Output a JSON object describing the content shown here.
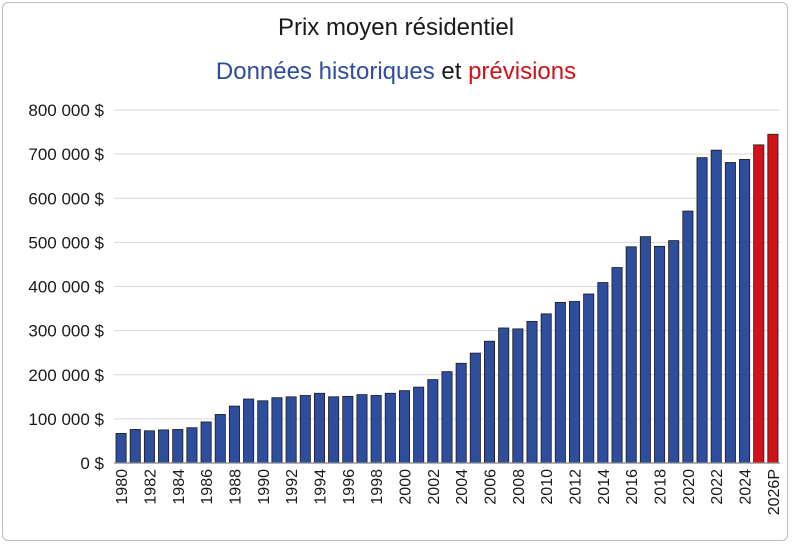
{
  "chart_data": {
    "type": "bar",
    "title": "Prix moyen résidentiel",
    "subtitle": {
      "part1": "Données historiques",
      "part2": "et",
      "part3": "prévisions"
    },
    "xlabel": "",
    "ylabel": "",
    "ylim": [
      0,
      800000
    ],
    "y_ticks": [
      "0 $",
      "100 000 $",
      "200 000 $",
      "300 000 $",
      "400 000 $",
      "500 000 $",
      "600 000 $",
      "700 000 $",
      "800 000 $"
    ],
    "grid": true,
    "colors": {
      "historical": "#2e4d9c",
      "forecast": "#d0121b",
      "grid": "#d9d9d9",
      "axis": "#888888"
    },
    "categories": [
      "1980",
      "1981",
      "1982",
      "1983",
      "1984",
      "1985",
      "1986",
      "1987",
      "1988",
      "1989",
      "1990",
      "1991",
      "1992",
      "1993",
      "1994",
      "1995",
      "1996",
      "1997",
      "1998",
      "1999",
      "2000",
      "2001",
      "2002",
      "2003",
      "2004",
      "2005",
      "2006",
      "2007",
      "2008",
      "2009",
      "2010",
      "2011",
      "2012",
      "2013",
      "2014",
      "2015",
      "2016",
      "2017",
      "2018",
      "2019",
      "2020",
      "2021",
      "2022",
      "2023",
      "2024",
      "2025P",
      "2026P"
    ],
    "x_tick_labels": [
      "1980",
      "",
      "1982",
      "",
      "1984",
      "",
      "1986",
      "",
      "1988",
      "",
      "1990",
      "",
      "1992",
      "",
      "1994",
      "",
      "1996",
      "",
      "1998",
      "",
      "2000",
      "",
      "2002",
      "",
      "2004",
      "",
      "2006",
      "",
      "2008",
      "",
      "2010",
      "",
      "2012",
      "",
      "2014",
      "",
      "2016",
      "",
      "2018",
      "",
      "2020",
      "",
      "2022",
      "",
      "2024",
      "",
      "2026P"
    ],
    "values": [
      67000,
      76000,
      73000,
      75000,
      76000,
      80000,
      93000,
      110000,
      129000,
      145000,
      141000,
      148000,
      150000,
      153000,
      158000,
      150000,
      151000,
      155000,
      153000,
      158000,
      164000,
      172000,
      189000,
      207000,
      226000,
      249000,
      276000,
      306000,
      304000,
      321000,
      338000,
      364000,
      366000,
      383000,
      409000,
      443000,
      490000,
      513000,
      491000,
      504000,
      571000,
      692000,
      709000,
      681000,
      688000,
      721000,
      745000
    ],
    "forecast": [
      false,
      false,
      false,
      false,
      false,
      false,
      false,
      false,
      false,
      false,
      false,
      false,
      false,
      false,
      false,
      false,
      false,
      false,
      false,
      false,
      false,
      false,
      false,
      false,
      false,
      false,
      false,
      false,
      false,
      false,
      false,
      false,
      false,
      false,
      false,
      false,
      false,
      false,
      false,
      false,
      false,
      false,
      false,
      false,
      false,
      true,
      true
    ]
  }
}
